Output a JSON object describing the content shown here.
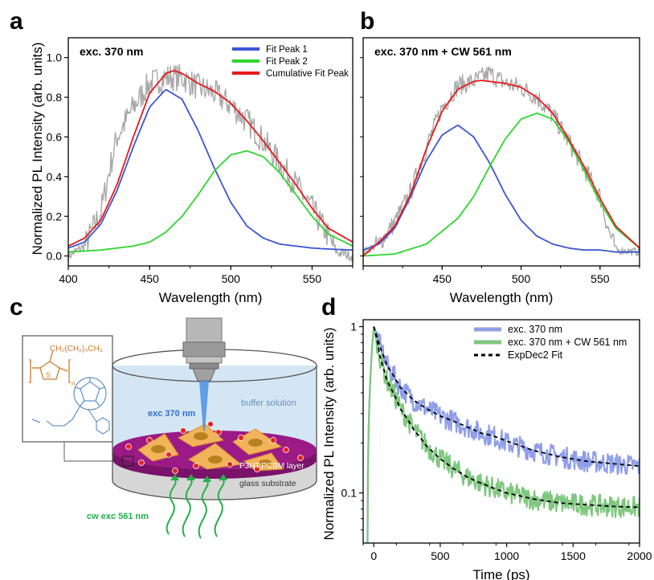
{
  "panels": {
    "a": "a",
    "b": "b",
    "c": "c",
    "d": "d"
  },
  "ylabel_ab": "Normalized PL Intensity (arb. units)",
  "ylabel_d": "Normalized PL Intensity (arb. units)",
  "schematic": {
    "exc_label": "exc 370 nm",
    "buffer_label": "buffer solution",
    "layer_label": "P3HT:PCBM layer",
    "glass_label": "glass substrate",
    "cw_label": "cw exc 561 nm",
    "chem_formula": "CH₂(CH₂)₄CH₃",
    "chem_s": "S",
    "chem_n": "n"
  },
  "colors": {
    "raw": "#a8a8a8",
    "peak1": "#3d55d6",
    "peak2": "#2ed62e",
    "cumulative": "#e8191b",
    "d_blue": "#8f9ee8",
    "d_green": "#7fc77f",
    "fit": "#000000",
    "purple": "#9b1a86",
    "water": "#cfe3f3",
    "glass": "#d6d6d6",
    "orange": "#e08a34"
  },
  "chart_data": [
    {
      "type": "line",
      "panel": "a",
      "annotation": "exc. 370 nm",
      "xlabel": "Wavelength (nm)",
      "ylabel": "Normalized PL Intensity (arb. units)",
      "xlim": [
        400,
        575
      ],
      "ylim": [
        -0.05,
        1.1
      ],
      "xticks": [
        400,
        450,
        500,
        550
      ],
      "yticks": [
        0.0,
        0.2,
        0.4,
        0.6,
        0.8,
        1.0
      ],
      "legend_position": "top-right",
      "series": [
        {
          "name": "Fit Peak 1",
          "color": "#3d55d6",
          "x": [
            400,
            410,
            420,
            430,
            440,
            450,
            460,
            470,
            480,
            490,
            500,
            510,
            520,
            530,
            540,
            550,
            560,
            575
          ],
          "y": [
            0.04,
            0.07,
            0.16,
            0.33,
            0.55,
            0.75,
            0.84,
            0.79,
            0.63,
            0.44,
            0.27,
            0.15,
            0.09,
            0.06,
            0.05,
            0.04,
            0.035,
            0.03
          ]
        },
        {
          "name": "Fit Peak 2",
          "color": "#2ed62e",
          "x": [
            400,
            420,
            440,
            450,
            460,
            470,
            480,
            490,
            500,
            510,
            520,
            530,
            540,
            550,
            560,
            575
          ],
          "y": [
            0.02,
            0.03,
            0.05,
            0.07,
            0.12,
            0.2,
            0.31,
            0.43,
            0.51,
            0.53,
            0.5,
            0.42,
            0.31,
            0.2,
            0.11,
            0.05
          ]
        },
        {
          "name": "Cumulative Fit Peak",
          "color": "#e8191b",
          "x": [
            400,
            410,
            420,
            430,
            440,
            450,
            460,
            465,
            470,
            480,
            490,
            500,
            510,
            520,
            530,
            540,
            550,
            560,
            575
          ],
          "y": [
            0.05,
            0.09,
            0.18,
            0.36,
            0.6,
            0.82,
            0.92,
            0.935,
            0.92,
            0.87,
            0.83,
            0.77,
            0.68,
            0.58,
            0.47,
            0.36,
            0.24,
            0.14,
            0.07
          ]
        },
        {
          "name": "",
          "color": "#a8a8a8",
          "x": [
            400,
            410,
            420,
            425,
            430,
            440,
            450,
            460,
            470,
            480,
            490,
            500,
            510,
            520,
            530,
            540,
            550,
            560,
            565,
            575
          ],
          "y": [
            0.0,
            0.05,
            0.22,
            0.42,
            0.6,
            0.75,
            0.87,
            0.9,
            0.9,
            0.85,
            0.82,
            0.76,
            0.68,
            0.58,
            0.47,
            0.36,
            0.24,
            0.1,
            0.02,
            0.0
          ]
        }
      ]
    },
    {
      "type": "line",
      "panel": "b",
      "annotation": "exc. 370 nm + CW 561 nm",
      "xlabel": "Wavelength (nm)",
      "xlim": [
        400,
        575
      ],
      "ylim": [
        -0.05,
        1.1
      ],
      "xticks": [
        400,
        450,
        500,
        550
      ],
      "series": [
        {
          "name": "Fit Peak 1",
          "color": "#3d55d6",
          "x": [
            400,
            410,
            420,
            430,
            440,
            450,
            460,
            470,
            480,
            490,
            500,
            510,
            520,
            530,
            540,
            550,
            560,
            575
          ],
          "y": [
            0.03,
            0.06,
            0.14,
            0.3,
            0.48,
            0.61,
            0.66,
            0.6,
            0.47,
            0.31,
            0.18,
            0.1,
            0.06,
            0.04,
            0.03,
            0.03,
            0.02,
            0.02
          ]
        },
        {
          "name": "Fit Peak 2",
          "color": "#2ed62e",
          "x": [
            400,
            420,
            440,
            460,
            470,
            480,
            490,
            500,
            510,
            520,
            530,
            540,
            550,
            560,
            575
          ],
          "y": [
            0.0,
            0.01,
            0.06,
            0.19,
            0.3,
            0.45,
            0.59,
            0.69,
            0.72,
            0.69,
            0.58,
            0.43,
            0.27,
            0.14,
            0.04
          ]
        },
        {
          "name": "Cumulative Fit Peak",
          "color": "#e8191b",
          "x": [
            400,
            410,
            420,
            430,
            440,
            450,
            460,
            470,
            475,
            480,
            490,
            500,
            510,
            520,
            530,
            540,
            550,
            560,
            575
          ],
          "y": [
            0.0,
            0.07,
            0.15,
            0.31,
            0.54,
            0.73,
            0.84,
            0.88,
            0.885,
            0.88,
            0.87,
            0.85,
            0.8,
            0.72,
            0.59,
            0.45,
            0.29,
            0.15,
            0.04
          ]
        },
        {
          "name": "",
          "color": "#a8a8a8",
          "x": [
            400,
            410,
            420,
            430,
            440,
            450,
            460,
            470,
            480,
            490,
            500,
            510,
            520,
            530,
            540,
            550,
            555,
            560,
            575
          ],
          "y": [
            0.02,
            0.06,
            0.17,
            0.32,
            0.55,
            0.75,
            0.86,
            0.88,
            0.92,
            0.87,
            0.85,
            0.8,
            0.71,
            0.58,
            0.44,
            0.3,
            0.14,
            0.03,
            0.02
          ]
        }
      ]
    },
    {
      "type": "line",
      "panel": "d",
      "xlabel": "Time (ps)",
      "ylabel": "Normalized PL Intensity (arb. units)",
      "xlim": [
        -80,
        2000
      ],
      "ylim": [
        0.05,
        1.1
      ],
      "yscale": "log",
      "xticks": [
        0,
        500,
        1000,
        1500,
        2000
      ],
      "yticks": [
        0.1,
        1
      ],
      "legend_position": "top-right",
      "series": [
        {
          "name": "exc. 370 nm",
          "color": "#8f9ee8",
          "x": [
            -50,
            -20,
            0,
            10,
            50,
            100,
            200,
            300,
            400,
            500,
            600,
            700,
            800,
            900,
            1000,
            1200,
            1400,
            1600,
            1800,
            2000
          ],
          "y": [
            0.02,
            0.6,
            1.0,
            0.95,
            0.75,
            0.58,
            0.43,
            0.36,
            0.32,
            0.29,
            0.27,
            0.25,
            0.23,
            0.22,
            0.2,
            0.18,
            0.165,
            0.155,
            0.15,
            0.145
          ]
        },
        {
          "name": "exc. 370 nm + CW 561 nm",
          "color": "#7fc77f",
          "x": [
            -50,
            -20,
            0,
            10,
            50,
            100,
            200,
            300,
            400,
            500,
            600,
            700,
            800,
            900,
            1000,
            1200,
            1400,
            1600,
            1800,
            2000
          ],
          "y": [
            0.02,
            0.6,
            1.0,
            0.9,
            0.63,
            0.47,
            0.32,
            0.24,
            0.19,
            0.16,
            0.14,
            0.125,
            0.115,
            0.107,
            0.1,
            0.092,
            0.087,
            0.085,
            0.083,
            0.082
          ]
        },
        {
          "name": "ExpDec2 Fit",
          "color": "#000000",
          "style": "dashed",
          "x": [
            0,
            50,
            100,
            200,
            300,
            400,
            500,
            600,
            700,
            800,
            900,
            1000,
            1200,
            1400,
            1600,
            1800,
            2000
          ],
          "y": [
            1.0,
            0.74,
            0.58,
            0.43,
            0.36,
            0.32,
            0.29,
            0.27,
            0.25,
            0.23,
            0.22,
            0.205,
            0.18,
            0.165,
            0.155,
            0.15,
            0.145
          ]
        },
        {
          "name": "",
          "color": "#000000",
          "style": "dashed",
          "x": [
            0,
            50,
            100,
            200,
            300,
            400,
            500,
            600,
            700,
            800,
            900,
            1000,
            1200,
            1400,
            1600,
            1800,
            2000
          ],
          "y": [
            1.0,
            0.64,
            0.47,
            0.32,
            0.24,
            0.19,
            0.16,
            0.14,
            0.125,
            0.115,
            0.107,
            0.1,
            0.092,
            0.087,
            0.085,
            0.083,
            0.082
          ]
        }
      ]
    }
  ]
}
